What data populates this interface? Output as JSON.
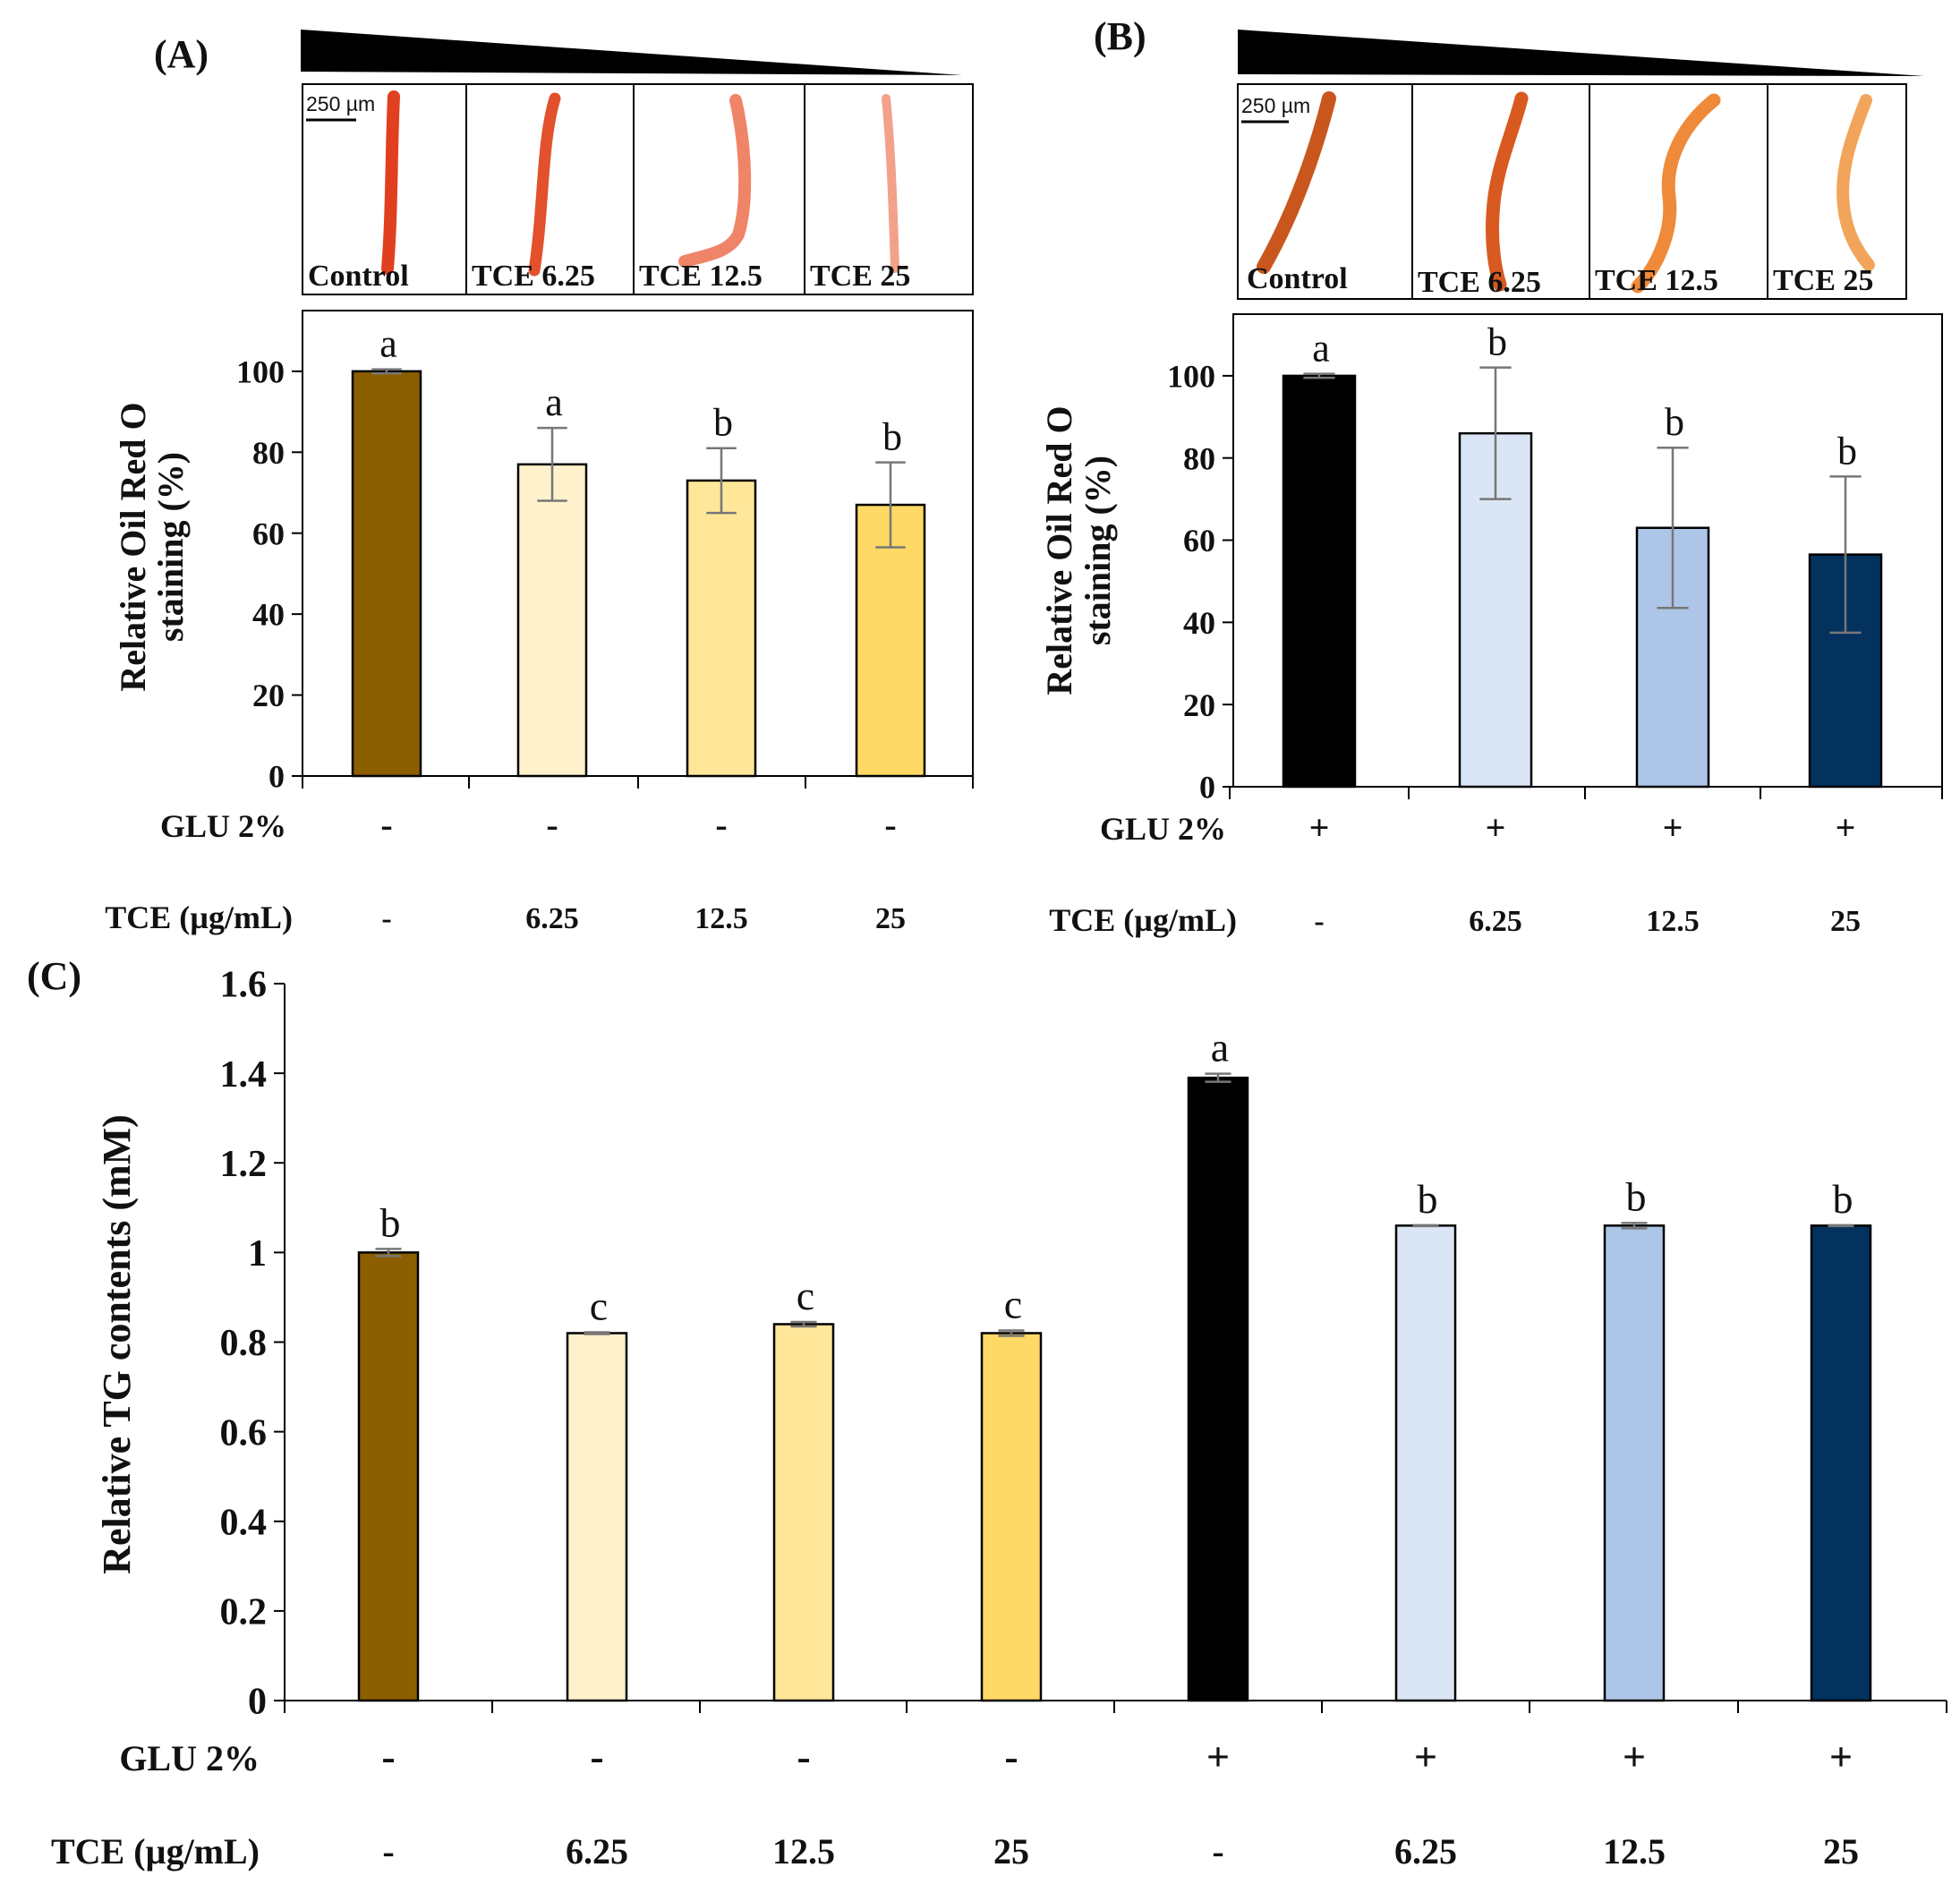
{
  "colors": {
    "brown": "#8B5E00",
    "yellow1": "#FFF1CC",
    "yellow2": "#FFE699",
    "yellow3": "#FFD966",
    "black": "#000000",
    "blue1": "#DAE6F5",
    "blue2": "#ADC6E8",
    "blue3": "#03325E",
    "worm_red": "#E0401E",
    "worm_light": "#F3A28A",
    "worm_yellow": "#E9E0A8"
  },
  "panels": {
    "A": {
      "label": "(A)",
      "scale_text": "250 µm",
      "images": [
        "Control",
        "TCE 6.25",
        "TCE 12.5",
        "TCE 25"
      ]
    },
    "B": {
      "label": "(B)",
      "scale_text": "250 µm",
      "images": [
        "Control",
        "TCE 6.25",
        "TCE 12.5",
        "TCE 25"
      ]
    },
    "C": {
      "label": "(C)"
    }
  },
  "chart_data": [
    {
      "id": "A",
      "type": "bar",
      "ylabel_line1": "Relative Oil Red O",
      "ylabel_line2": "staining (%)",
      "ylim": [
        0,
        115
      ],
      "yticks": [
        "0",
        "20",
        "40",
        "60",
        "80",
        "100"
      ],
      "values": [
        100,
        77,
        73,
        67
      ],
      "errors": [
        0.5,
        9,
        8,
        10.5
      ],
      "letters": [
        "a",
        "a",
        "b",
        "b"
      ],
      "fills": [
        "#8B5E00",
        "#FFF1CC",
        "#FFE699",
        "#FFD966"
      ],
      "row_labels": [
        "GLU 2%",
        "TCE (µg/mL)"
      ],
      "glu": [
        "-",
        "-",
        "-",
        "-"
      ],
      "tce": [
        "-",
        "6.25",
        "12.5",
        "25"
      ]
    },
    {
      "id": "B",
      "type": "bar",
      "ylabel_line1": "Relative Oil Red O",
      "ylabel_line2": "staining (%)",
      "ylim": [
        0,
        115
      ],
      "yticks": [
        "0",
        "20",
        "40",
        "60",
        "80",
        "100"
      ],
      "values": [
        100,
        86,
        63,
        56.5
      ],
      "errors": [
        0.5,
        16,
        19.5,
        19
      ],
      "letters": [
        "a",
        "b",
        "b",
        "b"
      ],
      "fills": [
        "#000000",
        "#DAE6F5",
        "#ADC6E8",
        "#03325E"
      ],
      "row_labels": [
        "GLU 2%",
        "TCE (µg/mL)"
      ],
      "glu": [
        "+",
        "+",
        "+",
        "+"
      ],
      "tce": [
        "-",
        "6.25",
        "12.5",
        "25"
      ]
    },
    {
      "id": "C",
      "type": "bar",
      "ylabel": "Relative TG contents (mM)",
      "ylim": [
        0,
        1.6
      ],
      "yticks": [
        "0",
        "0.2",
        "0.4",
        "0.6",
        "0.8",
        "1",
        "1.2",
        "1.4",
        "1.6"
      ],
      "values": [
        1.0,
        0.82,
        0.84,
        0.82,
        1.39,
        1.06,
        1.06,
        1.06
      ],
      "errors": [
        0.008,
        0.002,
        0.005,
        0.006,
        0.009,
        0.001,
        0.006,
        0.001
      ],
      "letters": [
        "b",
        "c",
        "c",
        "c",
        "a",
        "b",
        "b",
        "b"
      ],
      "fills": [
        "#8B5E00",
        "#FFF1CC",
        "#FFE699",
        "#FFD966",
        "#000000",
        "#DAE6F5",
        "#ADC6E8",
        "#03325E"
      ],
      "row_labels": [
        "GLU 2%",
        "TCE (µg/mL)"
      ],
      "glu": [
        "-",
        "-",
        "-",
        "-",
        "+",
        "+",
        "+",
        "+"
      ],
      "tce": [
        "-",
        "6.25",
        "12.5",
        "25",
        "-",
        "6.25",
        "12.5",
        "25"
      ]
    }
  ]
}
